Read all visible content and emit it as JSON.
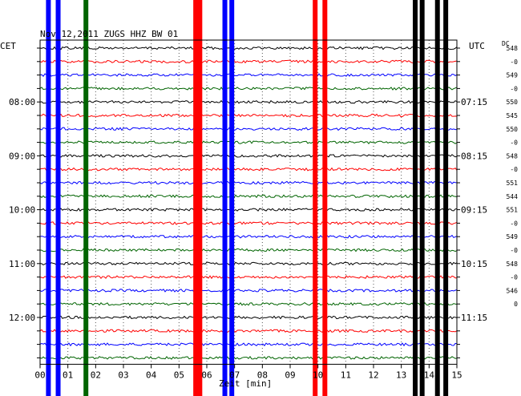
{
  "chart_data": {
    "type": "line",
    "title": "Nov 12,2011   ZUGS HHZ BW 01",
    "xlabel": "Zeit [min]",
    "x_ticks": [
      "00",
      "01",
      "02",
      "03",
      "04",
      "05",
      "06",
      "07",
      "08",
      "09",
      "10",
      "11",
      "12",
      "13",
      "14",
      "15"
    ],
    "xlim": [
      0,
      15
    ],
    "left_axis_label": "CET",
    "right_axis_label": "UTC",
    "dc_label": "DC",
    "left_hour_labels": [
      {
        "row": 4,
        "text": "08:00"
      },
      {
        "row": 8,
        "text": "09:00"
      },
      {
        "row": 12,
        "text": "10:00"
      },
      {
        "row": 16,
        "text": "11:00"
      },
      {
        "row": 20,
        "text": "12:00"
      }
    ],
    "right_hour_labels": [
      {
        "row": 4,
        "text": "07:15"
      },
      {
        "row": 8,
        "text": "08:15"
      },
      {
        "row": 12,
        "text": "09:15"
      },
      {
        "row": 16,
        "text": "10:15"
      },
      {
        "row": 20,
        "text": "11:15"
      }
    ],
    "dc_values": [
      "548",
      "-0",
      "549",
      "-0",
      "550",
      "545",
      "550",
      "-0",
      "548",
      "-0",
      "551",
      "544",
      "551",
      "-0",
      "549",
      "-0",
      "548",
      "-0",
      "546",
      "0"
    ],
    "trace_count": 24,
    "trace_colors": [
      "#000000",
      "#ff0000",
      "#0000ff",
      "#006400"
    ],
    "vertical_events": [
      {
        "minute": 0.3,
        "color": "#0000ff"
      },
      {
        "minute": 0.65,
        "color": "#0000ff"
      },
      {
        "minute": 1.65,
        "color": "#006400"
      },
      {
        "minute": 5.6,
        "color": "#ff0000"
      },
      {
        "minute": 5.75,
        "color": "#ff0000"
      },
      {
        "minute": 6.65,
        "color": "#0000ff"
      },
      {
        "minute": 6.9,
        "color": "#0000ff"
      },
      {
        "minute": 9.9,
        "color": "#ff0000"
      },
      {
        "minute": 10.25,
        "color": "#ff0000"
      },
      {
        "minute": 13.5,
        "color": "#000000"
      },
      {
        "minute": 13.75,
        "color": "#000000"
      },
      {
        "minute": 14.3,
        "color": "#000000"
      },
      {
        "minute": 14.6,
        "color": "#000000"
      }
    ]
  }
}
